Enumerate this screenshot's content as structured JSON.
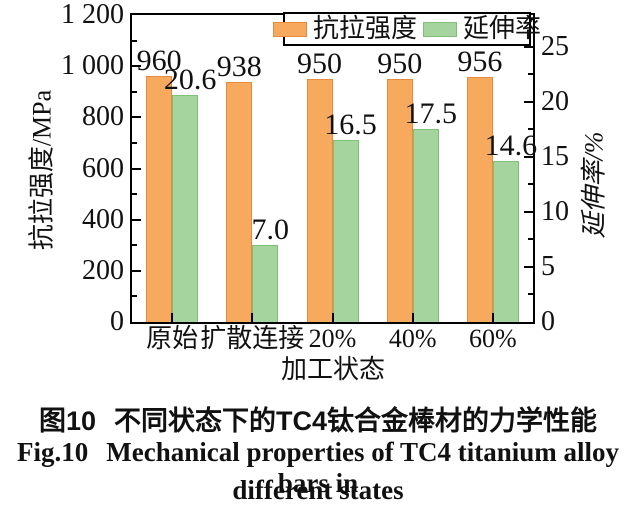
{
  "chart_data": {
    "type": "bar",
    "categories": [
      "原始",
      "扩散连接",
      "20%",
      "40%",
      "60%"
    ],
    "series": [
      {
        "name": "抗拉强度",
        "axis": "left",
        "unit": "MPa",
        "values": [
          960,
          938,
          950,
          950,
          956
        ],
        "value_labels": [
          "960",
          "938",
          "950",
          "950",
          "956"
        ],
        "fill": "#F7A95E",
        "edge": "#E68A3E"
      },
      {
        "name": "延伸率",
        "axis": "right",
        "unit": "%",
        "values": [
          20.6,
          7.0,
          16.5,
          17.5,
          14.6
        ],
        "value_labels": [
          "20.6",
          "7.0",
          "16.5",
          "17.5",
          "14.6"
        ],
        "fill": "#A6D49E",
        "edge": "#7FBF78"
      }
    ],
    "left_axis": {
      "label": "抗拉强度/MPa",
      "ylim": [
        0,
        1200
      ],
      "ticks": [
        0,
        200,
        400,
        600,
        800,
        1000,
        1200
      ],
      "tick_labels": [
        "0",
        "200",
        "400",
        "600",
        "800",
        "1 000",
        "1 200"
      ],
      "minor_step": 100
    },
    "right_axis": {
      "label": "延伸率/%",
      "ylim": [
        0,
        27.9
      ],
      "ticks": [
        0,
        5,
        10,
        15,
        20,
        25
      ],
      "tick_labels": [
        "0",
        "5",
        "10",
        "15",
        "20",
        "25"
      ],
      "minor_step": 2.5
    },
    "x_axis": {
      "label": "加工状态"
    },
    "legend": {
      "entries": [
        "抗拉强度",
        "延伸率"
      ],
      "position": "top-right"
    },
    "grid": false,
    "axis_color": "#000000"
  },
  "caption": {
    "zh_prefix": "图10",
    "zh_text": "不同状态下的TC4钛合金棒材的力学性能",
    "en_prefix": "Fig.10",
    "en_line1": "Mechanical properties of TC4 titanium alloy bars in",
    "en_line2": "different states"
  }
}
